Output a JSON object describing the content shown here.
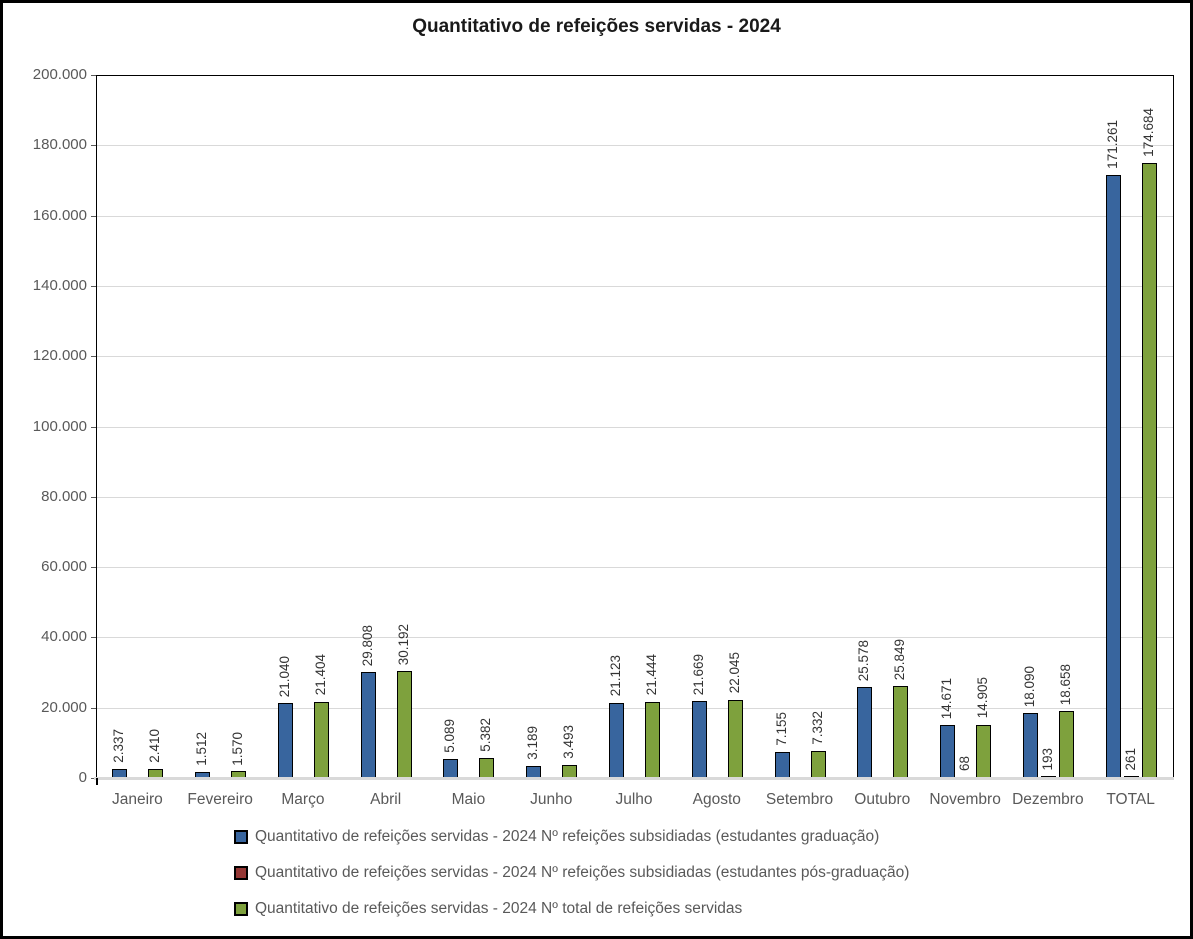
{
  "title": "Quantitativo de refeições servidas - 2024",
  "colors": {
    "series_graduacao": "#38659E",
    "series_pos_graduacao": "#953735",
    "series_total": "#7EA13D",
    "gridline": "#D9D9D9",
    "axis_text": "#595959",
    "bar_border": "#000000",
    "frame_border": "#000000"
  },
  "chart_data": {
    "type": "bar",
    "title": "Quantitativo de refeições servidas - 2024",
    "categories": [
      "Janeiro",
      "Fevereiro",
      "Março",
      "Abril",
      "Maio",
      "Junho",
      "Julho",
      "Agosto",
      "Setembro",
      "Outubro",
      "Novembro",
      "Dezembro",
      "TOTAL"
    ],
    "xlabel": "",
    "ylabel": "",
    "ylim": [
      0,
      200000
    ],
    "ytick_step": 20000,
    "ytick_labels": [
      "0",
      "20.000",
      "40.000",
      "60.000",
      "80.000",
      "100.000",
      "120.000",
      "140.000",
      "160.000",
      "180.000",
      "200.000"
    ],
    "grid": "horizontal",
    "legend_position": "bottom-left",
    "data_label_rotation": 90,
    "series": [
      {
        "name": "Quantitativo de refeições servidas - 2024 Nº refeições subsidiadas (estudantes graduação)",
        "color": "#38659E",
        "values": [
          2337,
          1512,
          21040,
          29808,
          5089,
          3189,
          21123,
          21669,
          7155,
          25578,
          14671,
          18090,
          171261
        ],
        "labels": [
          "2.337",
          "1.512",
          "21.040",
          "29.808",
          "5.089",
          "3.189",
          "21.123",
          "21.669",
          "7.155",
          "25.578",
          "14.671",
          "18.090",
          "171.261"
        ]
      },
      {
        "name": "Quantitativo de refeições servidas - 2024 Nº refeições subsidiadas (estudantes pós-graduação)",
        "color": "#953735",
        "values": [
          0,
          0,
          0,
          0,
          0,
          0,
          0,
          0,
          0,
          0,
          68,
          193,
          261
        ],
        "labels": [
          "",
          "",
          "",
          "",
          "",
          "",
          "",
          "",
          "",
          "",
          "68",
          "193",
          "261"
        ]
      },
      {
        "name": "Quantitativo de refeições servidas - 2024 Nº total de refeições servidas",
        "color": "#7EA13D",
        "values": [
          2410,
          1570,
          21404,
          30192,
          5382,
          3493,
          21444,
          22045,
          7332,
          25849,
          14905,
          18658,
          174684
        ],
        "labels": [
          "2.410",
          "1.570",
          "21.404",
          "30.192",
          "5.382",
          "3.493",
          "21.444",
          "22.045",
          "7.332",
          "25.849",
          "14.905",
          "18.658",
          "174.684"
        ]
      }
    ]
  }
}
